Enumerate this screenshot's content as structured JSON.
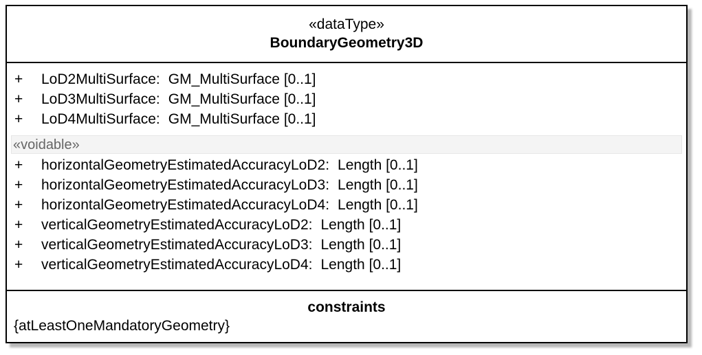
{
  "class_box": {
    "stereotype": "«dataType»",
    "name": "BoundaryGeometry3D",
    "attributes": [
      {
        "visibility": "+",
        "name": "LoD2MultiSurface",
        "type": "GM_MultiSurface [0..1]"
      },
      {
        "visibility": "+",
        "name": "LoD3MultiSurface",
        "type": "GM_MultiSurface [0..1]"
      },
      {
        "visibility": "+",
        "name": "LoD4MultiSurface",
        "type": "GM_MultiSurface [0..1]"
      }
    ],
    "voidable_label": "«voidable»",
    "voidable_attributes": [
      {
        "visibility": "+",
        "name": "horizontalGeometryEstimatedAccuracyLoD2",
        "type": "Length [0..1]"
      },
      {
        "visibility": "+",
        "name": "horizontalGeometryEstimatedAccuracyLoD3",
        "type": "Length [0..1]"
      },
      {
        "visibility": "+",
        "name": "horizontalGeometryEstimatedAccuracyLoD4",
        "type": "Length [0..1]"
      },
      {
        "visibility": "+",
        "name": "verticalGeometryEstimatedAccuracyLoD2",
        "type": "Length [0..1]"
      },
      {
        "visibility": "+",
        "name": "verticalGeometryEstimatedAccuracyLoD3",
        "type": "Length [0..1]"
      },
      {
        "visibility": "+",
        "name": "verticalGeometryEstimatedAccuracyLoD4",
        "type": "Length [0..1]"
      }
    ],
    "constraints_title": "constraints",
    "constraints": [
      "{atLeastOneMandatoryGeometry}"
    ]
  }
}
